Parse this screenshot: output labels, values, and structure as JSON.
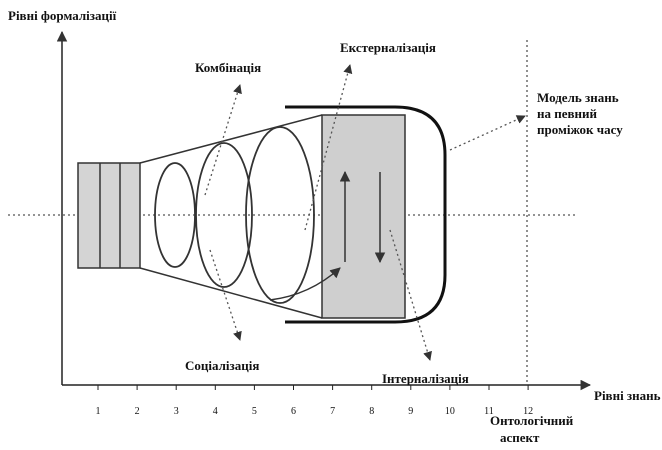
{
  "axes": {
    "y_label": "Рівні формалізації",
    "x_label": "Рівні знань",
    "x_sublabel": [
      "Онтологічний",
      "аспект"
    ],
    "x_ticks": [
      "1",
      "2",
      "3",
      "4",
      "5",
      "6",
      "7",
      "8",
      "9",
      "10",
      "11",
      "12"
    ]
  },
  "labels": {
    "combination": "Комбінація",
    "externalization": "Екстерналізація",
    "socialization": "Соціалізація",
    "internalization": "Інтерналізація",
    "model": [
      "Модель знань",
      "на певний",
      "проміжок часу"
    ]
  }
}
